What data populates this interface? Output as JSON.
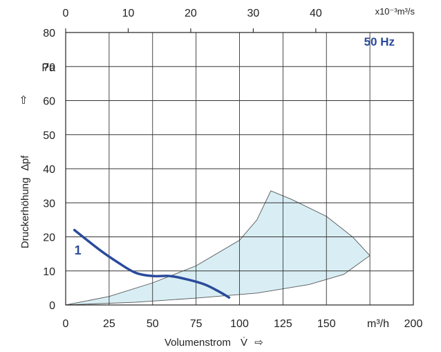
{
  "chart_data": {
    "type": "line",
    "title": "",
    "frequency_label": "50 Hz",
    "xlabel": "Volumenstrom",
    "x_symbol": "V̇",
    "x_arrow": "⇨",
    "x_unit": "m³/h",
    "xlim": [
      0,
      200
    ],
    "x_ticks": [
      "0",
      "25",
      "50",
      "75",
      "100",
      "125",
      "150",
      "200"
    ],
    "x2_unit": "x10⁻³m³/s",
    "x2lim": [
      0,
      55.6
    ],
    "x2_ticks": [
      "0",
      "10",
      "20",
      "30",
      "40"
    ],
    "x2_tick_values": [
      0,
      10,
      20,
      30,
      40
    ],
    "ylabel": "Druckerhöhung",
    "y_symbol": "∆pf",
    "y_arrow": "⇧",
    "y_unit": "Pa",
    "ylim": [
      0,
      80
    ],
    "y_ticks": [
      "0",
      "10",
      "20",
      "30",
      "40",
      "50",
      "60",
      "70",
      "80"
    ],
    "grid": true,
    "series": [
      {
        "name": "1",
        "color": "#2a4a9b",
        "points": [
          [
            5,
            22
          ],
          [
            20,
            16
          ],
          [
            30,
            12.5
          ],
          [
            40,
            9.5
          ],
          [
            50,
            8.5
          ],
          [
            60,
            8.5
          ],
          [
            70,
            7.5
          ],
          [
            80,
            6
          ],
          [
            88,
            4
          ],
          [
            94,
            2.2
          ]
        ]
      }
    ],
    "operating_area": {
      "fill": "#d8eef4",
      "stroke": "#555555",
      "upper": [
        [
          0,
          0
        ],
        [
          25,
          2.5
        ],
        [
          50,
          6.5
        ],
        [
          75,
          11.5
        ],
        [
          100,
          19
        ],
        [
          110,
          25
        ],
        [
          118,
          33.5
        ]
      ],
      "right": [
        [
          118,
          33.5
        ],
        [
          130,
          31
        ],
        [
          150,
          26
        ],
        [
          165,
          20
        ],
        [
          175,
          14.5
        ]
      ],
      "lower": [
        [
          175,
          14.5
        ],
        [
          160,
          9
        ],
        [
          140,
          6
        ],
        [
          110,
          3.5
        ],
        [
          75,
          2
        ],
        [
          40,
          0.8
        ],
        [
          0,
          0
        ]
      ]
    }
  }
}
